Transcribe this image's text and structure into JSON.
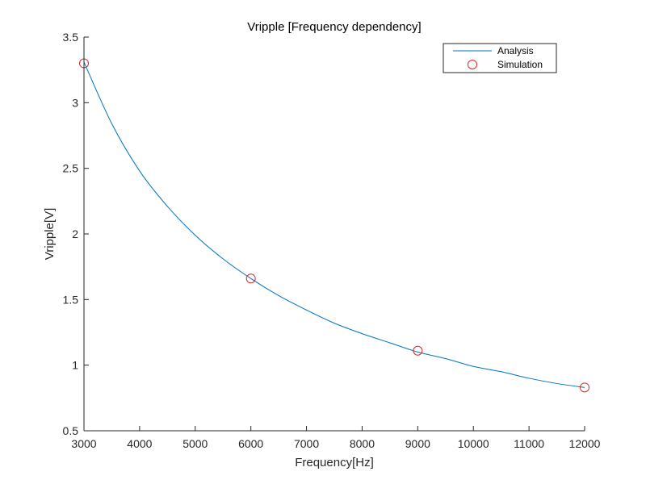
{
  "chart_data": {
    "type": "line",
    "title": "Vripple [Frequency dependency]",
    "xlabel": "Frequency[Hz]",
    "ylabel": "Vripple[V]",
    "xlim": [
      3000,
      12000
    ],
    "ylim": [
      0.5,
      3.5
    ],
    "xticks": [
      3000,
      4000,
      5000,
      6000,
      7000,
      8000,
      9000,
      10000,
      11000,
      12000
    ],
    "yticks": [
      0.5,
      1,
      1.5,
      2,
      2.5,
      3,
      3.5
    ],
    "grid": false,
    "legend_position": "top-right",
    "series": [
      {
        "name": "Analysis",
        "style": "line",
        "color": "#0072BD",
        "x": [
          3000,
          3500,
          4000,
          4500,
          5000,
          5500,
          6000,
          6500,
          7000,
          7500,
          8000,
          8500,
          9000,
          9500,
          10000,
          10500,
          11000,
          11500,
          12000
        ],
        "values": [
          3.31,
          2.84,
          2.48,
          2.21,
          1.99,
          1.81,
          1.66,
          1.53,
          1.42,
          1.32,
          1.24,
          1.17,
          1.1,
          1.05,
          0.99,
          0.95,
          0.9,
          0.86,
          0.83
        ]
      },
      {
        "name": "Simulation",
        "style": "marker",
        "color": "#D62728",
        "x": [
          3000,
          6000,
          9000,
          12000
        ],
        "values": [
          3.3,
          1.66,
          1.11,
          0.83
        ]
      }
    ]
  }
}
